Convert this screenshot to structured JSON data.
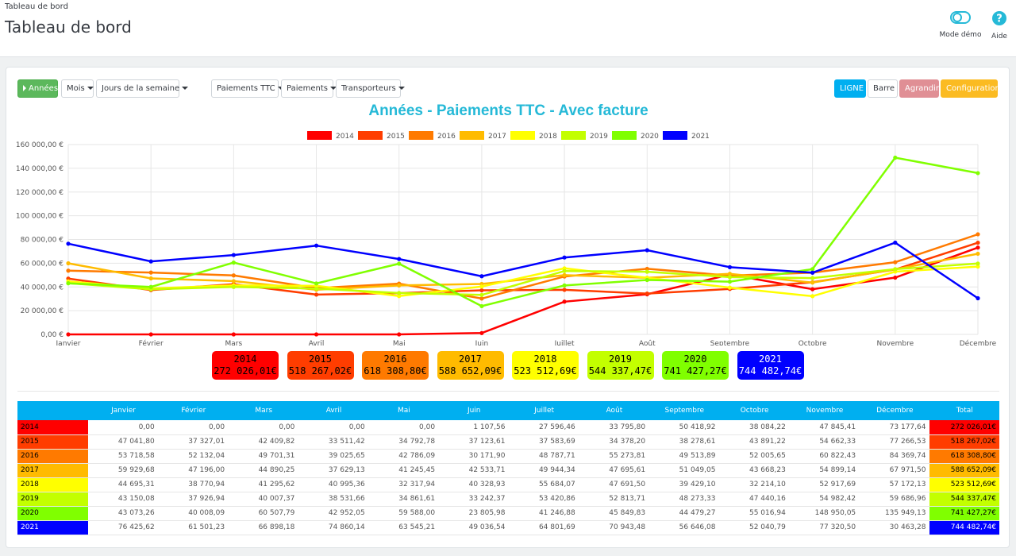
{
  "header": {
    "breadcrumb": "Tableau de bord",
    "title": "Tableau de bord",
    "demo_label": "Mode démo",
    "help_label": "Aide"
  },
  "toolbar": {
    "annees": "Années",
    "mois": "Mois",
    "jours": "Jours de la semaine",
    "paiements_ttc": "Paiements TTC",
    "paiements": "Paiements",
    "transporteurs": "Transporteurs",
    "ligne": "LIGNE",
    "barre": "Barre",
    "agrandir": "Agrandir",
    "configuration": "Configuration"
  },
  "colors": {
    "2014": "#ff0000",
    "2015": "#ff3d00",
    "2016": "#ff7a00",
    "2017": "#ffbb00",
    "2018": "#ffff00",
    "2019": "#c3ff00",
    "2020": "#80ff00",
    "2021": "#0000ff"
  },
  "chart_data": {
    "type": "line",
    "title": "Années - Paiements TTC - Avec facture",
    "legend_position": "top-center",
    "grid": true,
    "ylim": [
      0,
      160000
    ],
    "yticks": [
      0,
      20000,
      40000,
      60000,
      80000,
      100000,
      120000,
      140000,
      160000
    ],
    "ytick_labels": [
      "0,00 €",
      "20 000,00 €",
      "40 000,00 €",
      "60 000,00 €",
      "80 000,00 €",
      "100 000,00 €",
      "120 000,00 €",
      "140 000,00 €",
      "160 000,00 €"
    ],
    "categories": [
      "Janvier",
      "Février",
      "Mars",
      "Avril",
      "Mai",
      "Juin",
      "Juillet",
      "Août",
      "Septembre",
      "Octobre",
      "Novembre",
      "Décembre"
    ],
    "series": [
      {
        "name": "2014",
        "values": [
          0,
          0,
          0,
          0,
          0,
          1107.56,
          27596.46,
          33795.8,
          50418.92,
          38084.22,
          47845.41,
          73177.64
        ]
      },
      {
        "name": "2015",
        "values": [
          47041.8,
          37327.01,
          42409.82,
          33511.42,
          34792.78,
          37123.61,
          37583.69,
          34378.2,
          38278.61,
          43891.22,
          54662.33,
          77266.53
        ]
      },
      {
        "name": "2016",
        "values": [
          53718.58,
          52132.04,
          49701.31,
          39025.65,
          42786.09,
          30171.9,
          48787.71,
          55273.81,
          49513.89,
          52005.65,
          60822.43,
          84369.74
        ]
      },
      {
        "name": "2017",
        "values": [
          59929.68,
          47196.0,
          44890.25,
          37629.13,
          41245.45,
          42533.71,
          49944.34,
          47695.61,
          51049.05,
          43668.23,
          54899.14,
          67971.5
        ]
      },
      {
        "name": "2018",
        "values": [
          44695.31,
          38770.94,
          41295.62,
          40995.36,
          32317.94,
          40328.93,
          55684.07,
          47691.5,
          39429.1,
          32214.1,
          52917.69,
          57172.13
        ]
      },
      {
        "name": "2019",
        "values": [
          43150.08,
          37926.94,
          40007.37,
          38531.66,
          34861.61,
          33242.37,
          53420.86,
          52813.71,
          48273.33,
          47440.16,
          54982.42,
          59686.96
        ]
      },
      {
        "name": "2020",
        "values": [
          43073.26,
          40008.09,
          60507.79,
          42952.05,
          59588.0,
          23805.98,
          41246.88,
          45849.83,
          44479.27,
          55016.94,
          148950.05,
          135949.13
        ]
      },
      {
        "name": "2021",
        "values": [
          76425.62,
          61501.23,
          66898.18,
          74860.14,
          63545.21,
          49036.54,
          64801.69,
          70943.48,
          56646.08,
          52040.79,
          77320.5,
          30463.28
        ]
      }
    ]
  },
  "totals": [
    {
      "year": "2014",
      "amount": "272 026,01€"
    },
    {
      "year": "2015",
      "amount": "518 267,02€"
    },
    {
      "year": "2016",
      "amount": "618 308,80€"
    },
    {
      "year": "2017",
      "amount": "588 652,09€"
    },
    {
      "year": "2018",
      "amount": "523 512,69€"
    },
    {
      "year": "2019",
      "amount": "544 337,47€"
    },
    {
      "year": "2020",
      "amount": "741 427,27€"
    },
    {
      "year": "2021",
      "amount": "744 482,74€"
    }
  ],
  "table": {
    "headers": [
      "",
      "Janvier",
      "Février",
      "Mars",
      "Avril",
      "Mai",
      "Juin",
      "Juillet",
      "Août",
      "Septembre",
      "Octobre",
      "Novembre",
      "Décembre",
      "Total"
    ],
    "rows": [
      {
        "year": "2014",
        "cells": [
          "0,00",
          "0,00",
          "0,00",
          "0,00",
          "0,00",
          "1 107,56",
          "27 596,46",
          "33 795,80",
          "50 418,92",
          "38 084,22",
          "47 845,41",
          "73 177,64"
        ],
        "total": "272 026,01€"
      },
      {
        "year": "2015",
        "cells": [
          "47 041,80",
          "37 327,01",
          "42 409,82",
          "33 511,42",
          "34 792,78",
          "37 123,61",
          "37 583,69",
          "34 378,20",
          "38 278,61",
          "43 891,22",
          "54 662,33",
          "77 266,53"
        ],
        "total": "518 267,02€"
      },
      {
        "year": "2016",
        "cells": [
          "53 718,58",
          "52 132,04",
          "49 701,31",
          "39 025,65",
          "42 786,09",
          "30 171,90",
          "48 787,71",
          "55 273,81",
          "49 513,89",
          "52 005,65",
          "60 822,43",
          "84 369,74"
        ],
        "total": "618 308,80€"
      },
      {
        "year": "2017",
        "cells": [
          "59 929,68",
          "47 196,00",
          "44 890,25",
          "37 629,13",
          "41 245,45",
          "42 533,71",
          "49 944,34",
          "47 695,61",
          "51 049,05",
          "43 668,23",
          "54 899,14",
          "67 971,50"
        ],
        "total": "588 652,09€"
      },
      {
        "year": "2018",
        "cells": [
          "44 695,31",
          "38 770,94",
          "41 295,62",
          "40 995,36",
          "32 317,94",
          "40 328,93",
          "55 684,07",
          "47 691,50",
          "39 429,10",
          "32 214,10",
          "52 917,69",
          "57 172,13"
        ],
        "total": "523 512,69€"
      },
      {
        "year": "2019",
        "cells": [
          "43 150,08",
          "37 926,94",
          "40 007,37",
          "38 531,66",
          "34 861,61",
          "33 242,37",
          "53 420,86",
          "52 813,71",
          "48 273,33",
          "47 440,16",
          "54 982,42",
          "59 686,96"
        ],
        "total": "544 337,47€"
      },
      {
        "year": "2020",
        "cells": [
          "43 073,26",
          "40 008,09",
          "60 507,79",
          "42 952,05",
          "59 588,00",
          "23 805,98",
          "41 246,88",
          "45 849,83",
          "44 479,27",
          "55 016,94",
          "148 950,05",
          "135 949,13"
        ],
        "total": "741 427,27€"
      },
      {
        "year": "2021",
        "cells": [
          "76 425,62",
          "61 501,23",
          "66 898,18",
          "74 860,14",
          "63 545,21",
          "49 036,54",
          "64 801,69",
          "70 943,48",
          "56 646,08",
          "52 040,79",
          "77 320,50",
          "30 463,28"
        ],
        "total": "744 482,74€"
      }
    ]
  }
}
